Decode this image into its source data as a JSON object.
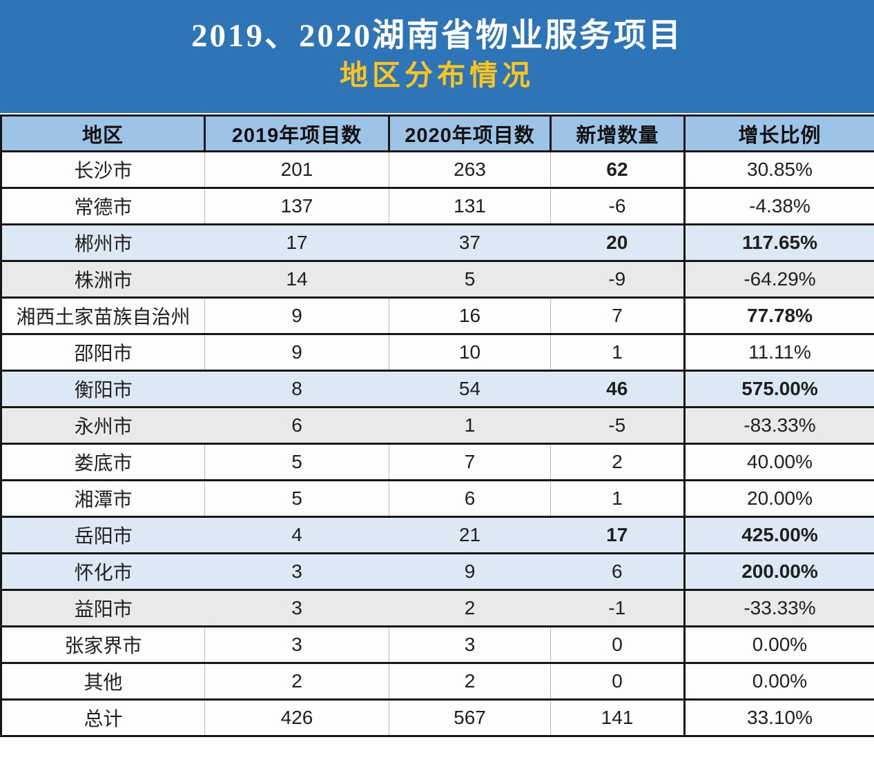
{
  "title": {
    "line1": "2019、2020湖南省物业服务项目",
    "line2": "地区分布情况"
  },
  "colors": {
    "title_bg": "#2e75b8",
    "subtitle_color": "#fec41e",
    "header_bg": "#9dc3e6",
    "row_white": "#fdfdfd",
    "row_blue": "#dce8f4",
    "row_gray": "#eae9e9",
    "border_dark": "#161616",
    "divider_gray": "#b6b6b6",
    "text_color": "#1f1f1f"
  },
  "table": {
    "headers": [
      "地区",
      "2019年项目数",
      "2020年项目数",
      "新增数量",
      "增长比例"
    ],
    "rows": [
      {
        "region": "长沙市",
        "y2019": "201",
        "y2020": "263",
        "added": "62",
        "growth": "30.85%",
        "bg": "white",
        "added_bold": true,
        "growth_bold": false
      },
      {
        "region": "常德市",
        "y2019": "137",
        "y2020": "131",
        "added": "-6",
        "growth": "-4.38%",
        "bg": "white",
        "added_bold": false,
        "growth_bold": false
      },
      {
        "region": "郴州市",
        "y2019": "17",
        "y2020": "37",
        "added": "20",
        "growth": "117.65%",
        "bg": "blue",
        "added_bold": true,
        "growth_bold": true
      },
      {
        "region": "株洲市",
        "y2019": "14",
        "y2020": "5",
        "added": "-9",
        "growth": "-64.29%",
        "bg": "gray",
        "added_bold": false,
        "growth_bold": false
      },
      {
        "region": "湘西土家苗族自治州",
        "y2019": "9",
        "y2020": "16",
        "added": "7",
        "growth": "77.78%",
        "bg": "white",
        "added_bold": false,
        "growth_bold": true
      },
      {
        "region": "邵阳市",
        "y2019": "9",
        "y2020": "10",
        "added": "1",
        "growth": "11.11%",
        "bg": "white",
        "added_bold": false,
        "growth_bold": false
      },
      {
        "region": "衡阳市",
        "y2019": "8",
        "y2020": "54",
        "added": "46",
        "growth": "575.00%",
        "bg": "blue",
        "added_bold": true,
        "growth_bold": true
      },
      {
        "region": "永州市",
        "y2019": "6",
        "y2020": "1",
        "added": "-5",
        "growth": "-83.33%",
        "bg": "gray",
        "added_bold": false,
        "growth_bold": false
      },
      {
        "region": "娄底市",
        "y2019": "5",
        "y2020": "7",
        "added": "2",
        "growth": "40.00%",
        "bg": "white",
        "added_bold": false,
        "growth_bold": false
      },
      {
        "region": "湘潭市",
        "y2019": "5",
        "y2020": "6",
        "added": "1",
        "growth": "20.00%",
        "bg": "white",
        "added_bold": false,
        "growth_bold": false
      },
      {
        "region": "岳阳市",
        "y2019": "4",
        "y2020": "21",
        "added": "17",
        "growth": "425.00%",
        "bg": "blue",
        "added_bold": true,
        "growth_bold": true
      },
      {
        "region": "怀化市",
        "y2019": "3",
        "y2020": "9",
        "added": "6",
        "growth": "200.00%",
        "bg": "blue",
        "added_bold": false,
        "growth_bold": true
      },
      {
        "region": "益阳市",
        "y2019": "3",
        "y2020": "2",
        "added": "-1",
        "growth": "-33.33%",
        "bg": "gray",
        "added_bold": false,
        "growth_bold": false
      },
      {
        "region": "张家界市",
        "y2019": "3",
        "y2020": "3",
        "added": "0",
        "growth": "0.00%",
        "bg": "white",
        "added_bold": false,
        "growth_bold": false
      },
      {
        "region": "其他",
        "y2019": "2",
        "y2020": "2",
        "added": "0",
        "growth": "0.00%",
        "bg": "white",
        "added_bold": false,
        "growth_bold": false
      },
      {
        "region": "总计",
        "y2019": "426",
        "y2020": "567",
        "added": "141",
        "growth": "33.10%",
        "bg": "white",
        "added_bold": false,
        "growth_bold": false
      }
    ]
  },
  "chart_data": {
    "type": "table",
    "title": "2019、2020湖南省物业服务项目 地区分布情况",
    "columns": [
      "地区",
      "2019年项目数",
      "2020年项目数",
      "新增数量",
      "增长比例"
    ],
    "rows": [
      [
        "长沙市",
        201,
        263,
        62,
        "30.85%"
      ],
      [
        "常德市",
        137,
        131,
        -6,
        "-4.38%"
      ],
      [
        "郴州市",
        17,
        37,
        20,
        "117.65%"
      ],
      [
        "株洲市",
        14,
        5,
        -9,
        "-64.29%"
      ],
      [
        "湘西土家苗族自治州",
        9,
        16,
        7,
        "77.78%"
      ],
      [
        "邵阳市",
        9,
        10,
        1,
        "11.11%"
      ],
      [
        "衡阳市",
        8,
        54,
        46,
        "575.00%"
      ],
      [
        "永州市",
        6,
        1,
        -5,
        "-83.33%"
      ],
      [
        "娄底市",
        5,
        7,
        2,
        "40.00%"
      ],
      [
        "湘潭市",
        5,
        6,
        1,
        "20.00%"
      ],
      [
        "岳阳市",
        4,
        21,
        17,
        "425.00%"
      ],
      [
        "怀化市",
        3,
        9,
        6,
        "200.00%"
      ],
      [
        "益阳市",
        3,
        2,
        -1,
        "-33.33%"
      ],
      [
        "张家界市",
        3,
        3,
        0,
        "0.00%"
      ],
      [
        "其他",
        2,
        2,
        0,
        "0.00%"
      ],
      [
        "总计",
        426,
        567,
        141,
        "33.10%"
      ]
    ]
  }
}
